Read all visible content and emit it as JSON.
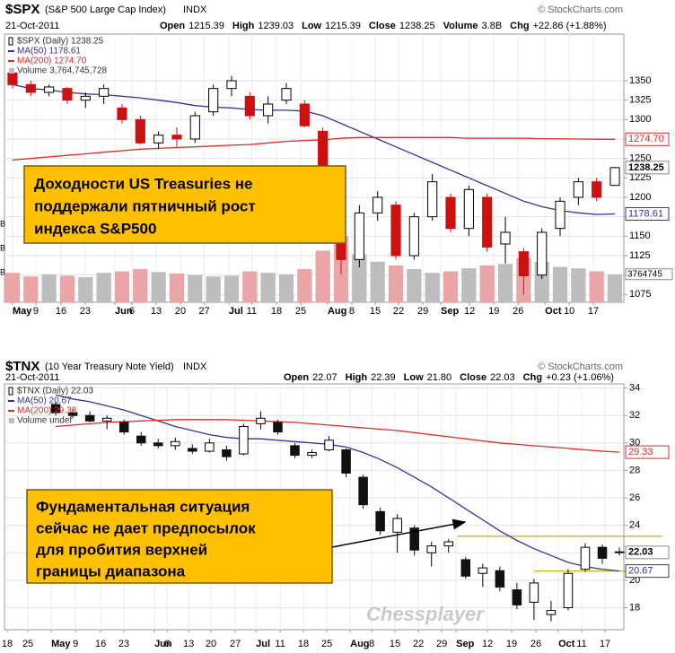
{
  "chart_data": [
    {
      "type": "candlestick",
      "title": "$SPX",
      "subtitle": "(S&P 500 Large Cap Index)",
      "exchange": "INDX",
      "source": "© StockCharts.com",
      "date": "21-Oct-2011",
      "stats": [
        {
          "label": "Open",
          "value": 1215.39
        },
        {
          "label": "High",
          "value": 1239.03
        },
        {
          "label": "Low",
          "value": 1215.39
        },
        {
          "label": "Close",
          "value": 1238.25
        },
        {
          "label": "Volume",
          "value": "3.8B"
        },
        {
          "label": "Chg",
          "value": "+22.86 (+1.88%)"
        }
      ],
      "ylim": [
        1065,
        1410
      ],
      "yticks": [
        1075,
        1100,
        1125,
        1150,
        1175,
        1200,
        1225,
        1250,
        1275,
        1300,
        1325,
        1350
      ],
      "grid": true,
      "xlim": [
        -0.44,
        33.49
      ],
      "xticks": [
        {
          "value": 0,
          "label": "May"
        },
        {
          "value": 1.28,
          "label": "9"
        },
        {
          "value": 2.66,
          "label": "16"
        },
        {
          "value": 3.98,
          "label": "23"
        },
        {
          "value": 5.61,
          "label": "Jun"
        },
        {
          "value": 6.54,
          "label": "6"
        },
        {
          "value": 7.87,
          "label": "13"
        },
        {
          "value": 9.2,
          "label": "20"
        },
        {
          "value": 10.5,
          "label": "27"
        },
        {
          "value": 11.85,
          "label": "Jul"
        },
        {
          "value": 13.1,
          "label": "11"
        },
        {
          "value": 14.46,
          "label": "18"
        },
        {
          "value": 15.79,
          "label": "25"
        },
        {
          "value": 17.26,
          "label": "Aug"
        },
        {
          "value": 18.59,
          "label": "8"
        },
        {
          "value": 19.87,
          "label": "15"
        },
        {
          "value": 21.15,
          "label": "22"
        },
        {
          "value": 22.48,
          "label": "29"
        },
        {
          "value": 23.46,
          "label": "Sep"
        },
        {
          "value": 25.04,
          "label": "12"
        },
        {
          "value": 26.37,
          "label": "19"
        },
        {
          "value": 27.7,
          "label": "26"
        },
        {
          "value": 29.17,
          "label": "Oct"
        },
        {
          "value": 30.5,
          "label": "10"
        },
        {
          "value": 31.82,
          "label": "17"
        }
      ],
      "series": [
        {
          "name": "$SPX (Daily) 1238.25",
          "kind": "candles",
          "up_color": "#ffffff",
          "down_color": "#cc1111",
          "candles": [
            [
              1360,
              1365,
              1340,
              1345
            ],
            [
              1345,
              1350,
              1330,
              1335
            ],
            [
              1335,
              1345,
              1330,
              1342
            ],
            [
              1340,
              1342,
              1320,
              1325
            ],
            [
              1325,
              1335,
              1315,
              1330
            ],
            [
              1330,
              1345,
              1320,
              1340
            ],
            [
              1315,
              1320,
              1295,
              1300
            ],
            [
              1300,
              1305,
              1268,
              1270
            ],
            [
              1270,
              1285,
              1262,
              1280
            ],
            [
              1280,
              1290,
              1265,
              1275
            ],
            [
              1275,
              1310,
              1270,
              1305
            ],
            [
              1310,
              1345,
              1305,
              1340
            ],
            [
              1340,
              1356,
              1330,
              1350
            ],
            [
              1330,
              1335,
              1300,
              1305
            ],
            [
              1305,
              1330,
              1295,
              1320
            ],
            [
              1325,
              1347,
              1320,
              1340
            ],
            [
              1320,
              1325,
              1290,
              1292
            ],
            [
              1285,
              1290,
              1200,
              1200
            ],
            [
              1170,
              1180,
              1101,
              1120
            ],
            [
              1120,
              1190,
              1110,
              1180
            ],
            [
              1180,
              1208,
              1170,
              1200
            ],
            [
              1190,
              1195,
              1120,
              1125
            ],
            [
              1125,
              1180,
              1120,
              1175
            ],
            [
              1175,
              1230,
              1170,
              1220
            ],
            [
              1200,
              1205,
              1155,
              1160
            ],
            [
              1160,
              1215,
              1150,
              1210
            ],
            [
              1200,
              1205,
              1130,
              1136
            ],
            [
              1140,
              1175,
              1115,
              1155
            ],
            [
              1130,
              1135,
              1075,
              1099
            ],
            [
              1100,
              1160,
              1095,
              1155
            ],
            [
              1160,
              1200,
              1150,
              1195
            ],
            [
              1200,
              1225,
              1190,
              1220
            ],
            [
              1220,
              1225,
              1195,
              1200
            ],
            [
              1215.39,
              1239.03,
              1215.39,
              1238.25
            ]
          ]
        },
        {
          "name": "MA(50) 1178.61",
          "kind": "line",
          "color": "#33339a",
          "values": [
            1345,
            1340,
            1338,
            1335,
            1333,
            1332,
            1330,
            1328,
            1325,
            1322,
            1318,
            1316,
            1315,
            1313,
            1312,
            1312,
            1311,
            1305,
            1295,
            1285,
            1275,
            1265,
            1255,
            1245,
            1235,
            1225,
            1215,
            1205,
            1195,
            1188,
            1183,
            1180,
            1178,
            1178.61
          ]
        },
        {
          "name": "MA(200) 1274.70",
          "kind": "line",
          "color": "#e02828",
          "values": [
            1248,
            1250,
            1252,
            1254,
            1256,
            1258,
            1260,
            1262,
            1263,
            1264,
            1265,
            1266,
            1267,
            1268,
            1270,
            1272,
            1273,
            1274,
            1276,
            1277,
            1277,
            1277,
            1277,
            1277,
            1277,
            1276,
            1276,
            1276,
            1276,
            1275.5,
            1275.2,
            1275,
            1274.8,
            1274.7
          ]
        },
        {
          "name": "Volume 3,764,745,728",
          "kind": "volume",
          "up_color": "#bdbdbd",
          "down_color": "#eaa6a6",
          "vlim": [
            0,
            12
          ],
          "axis_labels": [
            "B",
            "B",
            "B"
          ],
          "values": [
            4,
            3.5,
            3.8,
            3.6,
            3.4,
            4,
            4.2,
            4.5,
            4.1,
            3.9,
            3.7,
            3.5,
            3.6,
            4.2,
            4,
            3.8,
            4.5,
            7,
            9,
            6.5,
            5.5,
            5,
            4.5,
            4,
            4.2,
            4.6,
            5,
            5.2,
            6,
            5.5,
            4.8,
            4.6,
            4.2,
            3.8
          ]
        }
      ],
      "last_labels": [
        {
          "value": 1274.7,
          "label": "1274.70",
          "color": "#e02828"
        },
        {
          "value": 1238.25,
          "label": "1238.25",
          "color": "#000000"
        },
        {
          "value": 1178.61,
          "label": "1178.61",
          "color": "#33339a"
        },
        {
          "label": "3764745",
          "color": "#000000"
        }
      ],
      "annotation": [
        "Доходности US Treasuries не",
        "поддержали пятничный рост",
        "индекса S&P500"
      ]
    },
    {
      "type": "candlestick",
      "title": "$TNX",
      "subtitle": "(10 Year Treasury Note Yield)",
      "exchange": "INDX",
      "source": "© StockCharts.com",
      "date": "21-Oct-2011",
      "stats": [
        {
          "label": "Open",
          "value": 22.07
        },
        {
          "label": "High",
          "value": 22.39
        },
        {
          "label": "Low",
          "value": {
            "value": 21.8,
            "label": "21.80"
          }
        },
        {
          "label": "Close",
          "value": 22.03
        },
        {
          "label": "Chg",
          "value": "+0.23 (+1.06%)"
        }
      ],
      "ylim": [
        16.4,
        34.3
      ],
      "yticks": [
        18,
        20,
        22,
        24,
        26,
        28,
        30,
        32,
        34
      ],
      "grid": true,
      "xlim": [
        -3.0,
        33.26
      ],
      "xticks": [
        {
          "value": -2.84,
          "label": "18"
        },
        {
          "value": -1.63,
          "label": "25"
        },
        {
          "value": -0.26,
          "label": "May"
        },
        {
          "value": 1.16,
          "label": "9"
        },
        {
          "value": 2.63,
          "label": "16"
        },
        {
          "value": 3.99,
          "label": "23"
        },
        {
          "value": 5.78,
          "label": "Jun"
        },
        {
          "value": 6.52,
          "label": "6"
        },
        {
          "value": 7.78,
          "label": "13"
        },
        {
          "value": 9.09,
          "label": "20"
        },
        {
          "value": 10.51,
          "label": "27"
        },
        {
          "value": 11.72,
          "label": "Jul"
        },
        {
          "value": 13.14,
          "label": "11"
        },
        {
          "value": 14.5,
          "label": "18"
        },
        {
          "value": 15.87,
          "label": "25"
        },
        {
          "value": 17.24,
          "label": "Aug"
        },
        {
          "value": 18.5,
          "label": "8"
        },
        {
          "value": 19.86,
          "label": "15"
        },
        {
          "value": 21.23,
          "label": "22"
        },
        {
          "value": 22.6,
          "label": "29"
        },
        {
          "value": 23.44,
          "label": "Sep"
        },
        {
          "value": 25.28,
          "label": "12"
        },
        {
          "value": 26.69,
          "label": "19"
        },
        {
          "value": 28.11,
          "label": "26"
        },
        {
          "value": 29.43,
          "label": "Oct"
        },
        {
          "value": 30.79,
          "label": "11"
        },
        {
          "value": 32.16,
          "label": "17"
        }
      ],
      "series": [
        {
          "name": "$TNX (Daily) 22.03",
          "kind": "candles",
          "up_color": "#ffffff",
          "down_color": "#111111",
          "candles": [
            [
              32.8,
              33.0,
              32.0,
              32.2
            ],
            [
              32.2,
              32.5,
              31.8,
              32.0
            ],
            [
              32.0,
              32.3,
              31.5,
              31.6
            ],
            [
              31.6,
              32.0,
              31.0,
              31.8
            ],
            [
              31.5,
              31.7,
              30.6,
              30.8
            ],
            [
              30.5,
              30.8,
              29.8,
              30.0
            ],
            [
              30.0,
              30.3,
              29.6,
              29.8
            ],
            [
              29.8,
              30.4,
              29.5,
              30.1
            ],
            [
              29.6,
              29.9,
              29.2,
              29.4
            ],
            [
              29.4,
              30.3,
              29.3,
              30.0
            ],
            [
              29.5,
              29.8,
              28.7,
              29.0
            ],
            [
              29.2,
              31.4,
              29.1,
              31.2
            ],
            [
              31.4,
              32.3,
              31.0,
              31.8
            ],
            [
              31.5,
              31.7,
              30.6,
              30.8
            ],
            [
              29.8,
              30.0,
              28.9,
              29.1
            ],
            [
              29.1,
              29.5,
              28.9,
              29.3
            ],
            [
              29.5,
              30.5,
              29.4,
              30.2
            ],
            [
              29.5,
              29.6,
              27.5,
              27.8
            ],
            [
              27.5,
              27.7,
              25.2,
              25.5
            ],
            [
              25.0,
              25.3,
              23.3,
              23.6
            ],
            [
              23.5,
              24.8,
              22.0,
              24.5
            ],
            [
              23.8,
              24.0,
              21.8,
              22.2
            ],
            [
              22.0,
              22.8,
              21.0,
              22.5
            ],
            [
              22.5,
              23.0,
              22.0,
              22.8
            ],
            [
              21.5,
              21.7,
              20.1,
              20.3
            ],
            [
              20.5,
              21.2,
              19.5,
              20.9
            ],
            [
              20.7,
              21.0,
              19.2,
              19.5
            ],
            [
              19.3,
              19.8,
              17.9,
              18.2
            ],
            [
              18.4,
              20.1,
              17.1,
              19.8
            ],
            [
              17.5,
              18.5,
              17.0,
              17.8
            ],
            [
              18.0,
              20.8,
              17.8,
              20.5
            ],
            [
              20.8,
              22.7,
              20.6,
              22.4
            ],
            [
              22.4,
              22.6,
              21.2,
              21.6
            ],
            [
              22.07,
              22.39,
              21.8,
              22.03
            ]
          ]
        },
        {
          "name": "MA(50) 20.67",
          "kind": "line",
          "color": "#33339a",
          "values": [
            33.5,
            33.2,
            33.0,
            32.7,
            32.4,
            32.0,
            31.6,
            31.2,
            30.9,
            30.6,
            30.4,
            30.3,
            30.3,
            30.2,
            30.1,
            30.0,
            29.9,
            29.7,
            29.3,
            28.8,
            28.2,
            27.5,
            26.8,
            26.0,
            25.2,
            24.4,
            23.6,
            22.9,
            22.3,
            21.8,
            21.3,
            21.0,
            20.8,
            20.67
          ]
        },
        {
          "name": "MA(200) 29.33",
          "kind": "line",
          "color": "#e02828",
          "values": [
            31.2,
            31.3,
            31.4,
            31.5,
            31.55,
            31.6,
            31.65,
            31.7,
            31.7,
            31.7,
            31.7,
            31.65,
            31.6,
            31.55,
            31.5,
            31.4,
            31.3,
            31.2,
            31.1,
            31.0,
            30.9,
            30.75,
            30.6,
            30.45,
            30.3,
            30.15,
            30.0,
            29.9,
            29.8,
            29.7,
            29.6,
            29.5,
            29.4,
            29.33
          ]
        },
        {
          "name": "Volume undef",
          "kind": "volume"
        }
      ],
      "reference_lines": [
        {
          "y": 23.2,
          "x": [
            23.5,
            35.5
          ],
          "color": "#c8b400"
        },
        {
          "y": 20.67,
          "x": [
            28.0,
            33.4
          ],
          "color": "#c8b400"
        }
      ],
      "last_labels": [
        {
          "value": 29.33,
          "label": "29.33",
          "color": "#e02828"
        },
        {
          "value": 22.03,
          "label": "22.03",
          "color": "#000000"
        },
        {
          "value": 20.67,
          "label": "20.67",
          "color": "#33339a"
        }
      ],
      "annotation": [
        "Фундаментальная ситуация",
        "сейчас не дает предпосылок",
        "для пробития верхней",
        "границы диапазона"
      ],
      "watermark": "Chessplayer"
    }
  ]
}
